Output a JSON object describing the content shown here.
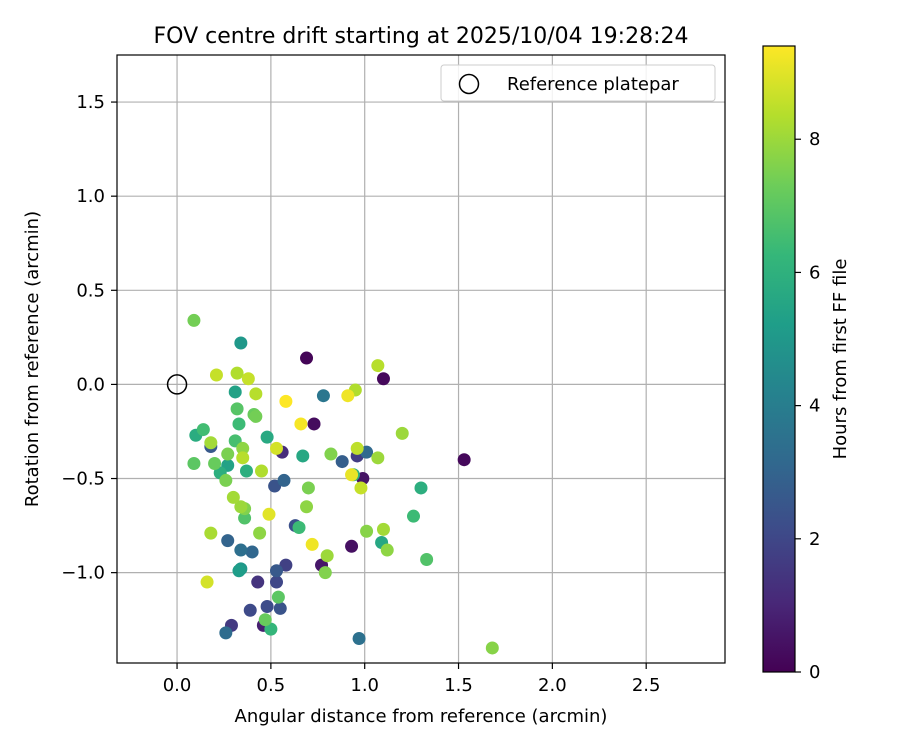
{
  "chart_data": {
    "type": "scatter",
    "title": "FOV centre drift starting at 2025/10/04 19:28:24",
    "xlabel": "Angular distance from reference (arcmin)",
    "ylabel": "Rotation from reference (arcmin)",
    "xlim": [
      -0.32,
      2.92
    ],
    "ylim": [
      -1.48,
      1.75
    ],
    "xticks": [
      0.0,
      0.5,
      1.0,
      1.5,
      2.0,
      2.5
    ],
    "xtick_labels": [
      "0.0",
      "0.5",
      "1.0",
      "1.5",
      "2.0",
      "2.5"
    ],
    "yticks": [
      -1.0,
      -0.5,
      0.0,
      0.5,
      1.0,
      1.5
    ],
    "ytick_labels": [
      "−1.0",
      "−0.5",
      "0.0",
      "0.5",
      "1.0",
      "1.5"
    ],
    "grid": true,
    "legend": {
      "label": "Reference platepar",
      "position": "top-right"
    },
    "reference_point": {
      "x": 0.0,
      "y": 0.0
    },
    "colorbar": {
      "label": "Hours from first FF file",
      "min": 0,
      "max": 9.4,
      "ticks": [
        0,
        2,
        4,
        6,
        8
      ],
      "tick_labels": [
        "0",
        "2",
        "4",
        "6",
        "8"
      ],
      "colormap": "viridis"
    },
    "points": [
      {
        "x": 0.69,
        "y": 0.14,
        "h": 0.1
      },
      {
        "x": 1.1,
        "y": 0.03,
        "h": 0.2
      },
      {
        "x": 1.53,
        "y": -0.4,
        "h": 0.2
      },
      {
        "x": 0.73,
        "y": -0.21,
        "h": 0.3
      },
      {
        "x": 0.93,
        "y": -0.86,
        "h": 0.4
      },
      {
        "x": 0.99,
        "y": -0.5,
        "h": 0.5
      },
      {
        "x": 0.77,
        "y": -0.96,
        "h": 0.6
      },
      {
        "x": 0.46,
        "y": -1.28,
        "h": 0.8
      },
      {
        "x": 0.56,
        "y": -0.36,
        "h": 1.2
      },
      {
        "x": 0.43,
        "y": -1.05,
        "h": 1.4
      },
      {
        "x": 0.29,
        "y": -1.28,
        "h": 1.6
      },
      {
        "x": 0.96,
        "y": -0.38,
        "h": 1.7
      },
      {
        "x": 0.58,
        "y": -0.96,
        "h": 1.8
      },
      {
        "x": 0.53,
        "y": -1.05,
        "h": 2.0
      },
      {
        "x": 0.39,
        "y": -1.2,
        "h": 2.1
      },
      {
        "x": 0.48,
        "y": -1.18,
        "h": 2.2
      },
      {
        "x": 0.63,
        "y": -0.75,
        "h": 2.3
      },
      {
        "x": 0.52,
        "y": -0.54,
        "h": 2.4
      },
      {
        "x": 0.55,
        "y": -1.19,
        "h": 2.4
      },
      {
        "x": 0.18,
        "y": -0.33,
        "h": 2.6
      },
      {
        "x": 0.53,
        "y": -0.99,
        "h": 2.6
      },
      {
        "x": 0.88,
        "y": -0.41,
        "h": 2.8
      },
      {
        "x": 0.27,
        "y": -0.83,
        "h": 3.0
      },
      {
        "x": 0.57,
        "y": -0.51,
        "h": 3.0
      },
      {
        "x": 0.4,
        "y": -0.89,
        "h": 3.1
      },
      {
        "x": 1.01,
        "y": -0.36,
        "h": 3.2
      },
      {
        "x": 0.26,
        "y": -1.32,
        "h": 3.3
      },
      {
        "x": 0.34,
        "y": -0.88,
        "h": 3.4
      },
      {
        "x": 0.97,
        "y": -1.35,
        "h": 3.5
      },
      {
        "x": 0.78,
        "y": -0.06,
        "h": 3.7
      },
      {
        "x": 0.34,
        "y": -0.98,
        "h": 5.0
      },
      {
        "x": 0.34,
        "y": 0.22,
        "h": 5.0
      },
      {
        "x": 0.33,
        "y": -0.99,
        "h": 5.2
      },
      {
        "x": 0.31,
        "y": -0.04,
        "h": 5.4
      },
      {
        "x": 0.27,
        "y": -0.43,
        "h": 5.4
      },
      {
        "x": 0.67,
        "y": -0.38,
        "h": 5.6
      },
      {
        "x": 1.09,
        "y": -0.84,
        "h": 5.6
      },
      {
        "x": 0.48,
        "y": -0.28,
        "h": 5.7
      },
      {
        "x": 0.1,
        "y": -0.27,
        "h": 5.8
      },
      {
        "x": 0.23,
        "y": -0.47,
        "h": 5.9
      },
      {
        "x": 0.37,
        "y": -0.46,
        "h": 5.9
      },
      {
        "x": 1.3,
        "y": -0.55,
        "h": 5.9
      },
      {
        "x": 0.94,
        "y": -0.48,
        "h": 6.0
      },
      {
        "x": 0.5,
        "y": -1.3,
        "h": 6.2
      },
      {
        "x": 0.33,
        "y": -0.21,
        "h": 6.4
      },
      {
        "x": 1.26,
        "y": -0.7,
        "h": 6.4
      },
      {
        "x": 0.65,
        "y": -0.76,
        "h": 6.4
      },
      {
        "x": 0.14,
        "y": -0.24,
        "h": 6.5
      },
      {
        "x": 0.31,
        "y": -0.3,
        "h": 6.6
      },
      {
        "x": 0.36,
        "y": -0.71,
        "h": 6.8
      },
      {
        "x": 1.33,
        "y": -0.93,
        "h": 6.8
      },
      {
        "x": 0.32,
        "y": -0.13,
        "h": 6.9
      },
      {
        "x": 0.54,
        "y": -1.13,
        "h": 7.0
      },
      {
        "x": 0.09,
        "y": -0.42,
        "h": 7.0
      },
      {
        "x": 0.2,
        "y": -0.42,
        "h": 7.2
      },
      {
        "x": 0.47,
        "y": -1.25,
        "h": 7.2
      },
      {
        "x": 0.41,
        "y": -0.16,
        "h": 7.2
      },
      {
        "x": 0.09,
        "y": 0.34,
        "h": 7.4
      },
      {
        "x": 0.42,
        "y": -0.17,
        "h": 7.4
      },
      {
        "x": 0.26,
        "y": -0.51,
        "h": 7.5
      },
      {
        "x": 0.27,
        "y": -0.37,
        "h": 7.5
      },
      {
        "x": 0.7,
        "y": -0.55,
        "h": 7.5
      },
      {
        "x": 0.36,
        "y": -0.66,
        "h": 7.6
      },
      {
        "x": 0.79,
        "y": -1.0,
        "h": 7.6
      },
      {
        "x": 0.82,
        "y": -0.37,
        "h": 7.6
      },
      {
        "x": 1.01,
        "y": -0.78,
        "h": 7.7
      },
      {
        "x": 1.68,
        "y": -1.4,
        "h": 7.7
      },
      {
        "x": 1.12,
        "y": -0.88,
        "h": 7.8
      },
      {
        "x": 0.44,
        "y": -0.79,
        "h": 7.8
      },
      {
        "x": 0.35,
        "y": -0.34,
        "h": 7.8
      },
      {
        "x": 0.69,
        "y": -0.65,
        "h": 7.8
      },
      {
        "x": 0.34,
        "y": -0.65,
        "h": 8.0
      },
      {
        "x": 1.07,
        "y": -0.39,
        "h": 8.0
      },
      {
        "x": 0.8,
        "y": -0.91,
        "h": 8.0
      },
      {
        "x": 1.2,
        "y": -0.26,
        "h": 8.0
      },
      {
        "x": 1.1,
        "y": -0.77,
        "h": 8.1
      },
      {
        "x": 0.3,
        "y": -0.6,
        "h": 8.1
      },
      {
        "x": 0.18,
        "y": -0.31,
        "h": 8.1
      },
      {
        "x": 0.18,
        "y": -0.79,
        "h": 8.2
      },
      {
        "x": 0.32,
        "y": 0.06,
        "h": 8.3
      },
      {
        "x": 0.45,
        "y": -0.46,
        "h": 8.3
      },
      {
        "x": 0.95,
        "y": -0.03,
        "h": 8.3
      },
      {
        "x": 0.35,
        "y": -0.39,
        "h": 8.4
      },
      {
        "x": 0.42,
        "y": -0.05,
        "h": 8.4
      },
      {
        "x": 1.07,
        "y": 0.1,
        "h": 8.4
      },
      {
        "x": 0.96,
        "y": -0.34,
        "h": 8.5
      },
      {
        "x": 0.21,
        "y": 0.05,
        "h": 8.6
      },
      {
        "x": 0.98,
        "y": -0.55,
        "h": 8.6
      },
      {
        "x": 0.38,
        "y": 0.03,
        "h": 8.6
      },
      {
        "x": 0.16,
        "y": -1.05,
        "h": 8.8
      },
      {
        "x": 0.53,
        "y": -0.34,
        "h": 8.8
      },
      {
        "x": 0.49,
        "y": -0.69,
        "h": 9.0
      },
      {
        "x": 0.93,
        "y": -0.48,
        "h": 9.1
      },
      {
        "x": 0.72,
        "y": -0.85,
        "h": 9.2
      },
      {
        "x": 0.91,
        "y": -0.06,
        "h": 9.2
      },
      {
        "x": 0.66,
        "y": -0.21,
        "h": 9.3
      },
      {
        "x": 0.58,
        "y": -0.09,
        "h": 9.4
      }
    ]
  }
}
